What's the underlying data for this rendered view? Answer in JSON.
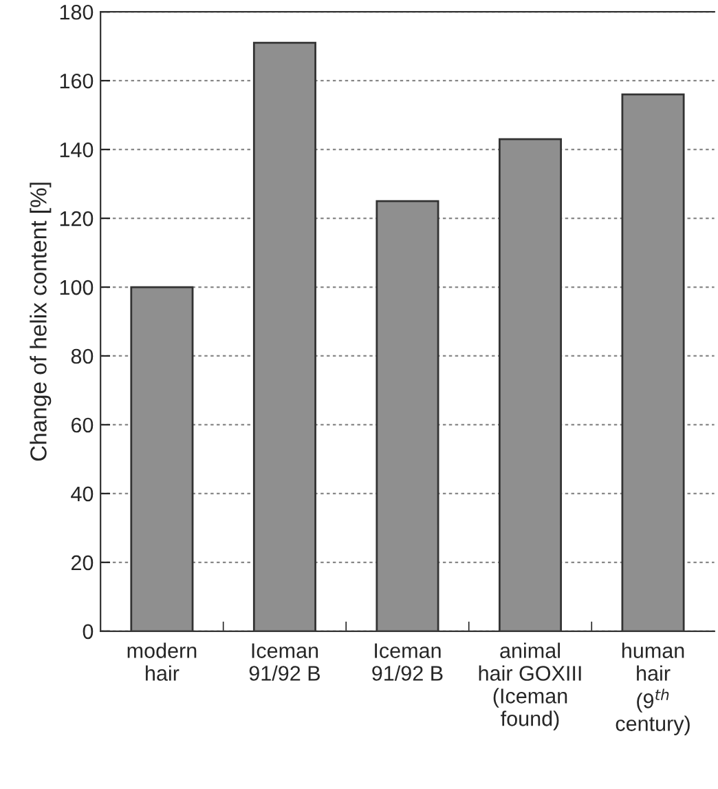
{
  "chart_data": {
    "type": "bar",
    "ylabel": "Change of helix content [%]",
    "categories": [
      "modern\nhair",
      "Iceman\n91/92 B",
      "Iceman\n91/92 B",
      "animal\nhair GOXIII\n(Iceman\nfound)",
      "human\nhair\n(9$^{th}$\ncentury)"
    ],
    "values": [
      100,
      171,
      125,
      143,
      156
    ],
    "color": "#8f8f8f",
    "ylim": [
      0,
      180
    ],
    "yticks": [
      0,
      20,
      40,
      60,
      80,
      100,
      120,
      140,
      160,
      180
    ],
    "grid": "y"
  }
}
